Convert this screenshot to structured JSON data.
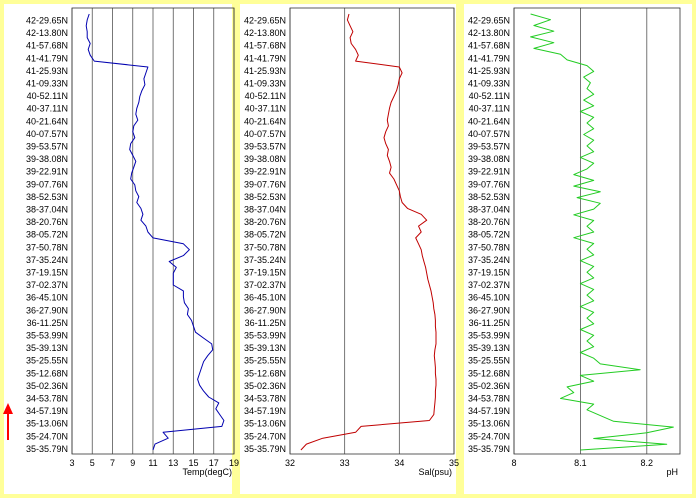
{
  "colors": {
    "panel_border": "#ffff99",
    "background": "#ffffff",
    "grid": "#555555",
    "temp": "#0000b0",
    "sal": "#c00000",
    "ph": "#22cc22",
    "arrow": "#ff0000"
  },
  "latitudes": [
    "42-29.65N",
    "42-13.80N",
    "41-57.68N",
    "41-41.79N",
    "41-25.93N",
    "41-09.33N",
    "40-52.11N",
    "40-37.11N",
    "40-21.64N",
    "40-07.57N",
    "39-53.57N",
    "39-38.08N",
    "39-22.91N",
    "39-07.76N",
    "38-52.53N",
    "38-37.04N",
    "38-20.76N",
    "38-05.72N",
    "37-50.78N",
    "37-35.24N",
    "37-19.15N",
    "37-02.37N",
    "36-45.10N",
    "36-27.90N",
    "36-11.25N",
    "35-53.99N",
    "35-39.13N",
    "35-25.55N",
    "35-12.68N",
    "35-02.36N",
    "34-53.78N",
    "34-57.19N",
    "35-13.06N",
    "35-24.70N",
    "35-35.79N"
  ],
  "chart_data": [
    {
      "type": "line",
      "name": "temperature",
      "xlabel": "Temp(degC)",
      "ylabel": "",
      "xlim": [
        3,
        19
      ],
      "xticks": [
        3,
        5,
        7,
        9,
        11,
        13,
        15,
        17,
        19
      ],
      "y_order": "top_to_bottom",
      "series": [
        {
          "x": [
            4.7,
            4.5,
            4.4,
            4.5,
            4.5,
            4.8,
            4.6,
            4.8,
            5.2,
            10.5,
            10.3,
            10.1,
            10.2,
            9.9,
            9.7,
            9.6,
            9.4,
            9.3,
            9.5,
            9.1,
            9.0,
            9.2,
            8.8,
            8.7,
            9.0,
            9.3,
            9.1,
            8.9,
            8.8,
            9.2,
            9.3,
            9.6,
            9.4,
            9.8,
            10.0,
            9.8,
            10.3,
            10.5,
            11.0,
            14.0,
            14.6,
            14.0,
            12.6,
            13.3,
            13.0,
            13.0,
            13.0,
            14.0,
            14.0,
            14.1,
            14.5,
            14.4,
            14.8,
            15.0,
            15.2,
            16.0,
            16.8,
            16.9,
            16.4,
            16.0,
            15.8,
            15.6,
            15.4,
            15.6,
            16.0,
            16.5,
            17.5,
            17.2,
            17.6,
            18.0,
            17.8,
            12.0,
            12.5,
            11.2,
            11.0
          ]
        }
      ]
    },
    {
      "type": "line",
      "name": "salinity",
      "xlabel": "Sal(psu)",
      "ylabel": "",
      "xlim": [
        32,
        35
      ],
      "xticks": [
        32,
        33,
        34,
        35
      ],
      "y_order": "top_to_bottom",
      "series": [
        {
          "x": [
            33.08,
            33.05,
            33.1,
            33.15,
            33.1,
            33.12,
            33.2,
            33.25,
            33.2,
            34.0,
            34.05,
            34.0,
            33.98,
            33.95,
            33.9,
            33.85,
            33.82,
            33.8,
            33.78,
            33.8,
            33.75,
            33.72,
            33.75,
            33.8,
            33.78,
            33.82,
            33.85,
            33.82,
            33.9,
            33.95,
            34.0,
            34.02,
            34.05,
            34.15,
            34.4,
            34.5,
            34.35,
            34.4,
            34.3,
            34.35,
            34.4,
            34.42,
            34.45,
            34.48,
            34.5,
            34.52,
            34.55,
            34.58,
            34.6,
            34.62,
            34.63,
            34.65,
            34.66,
            34.66,
            34.67,
            34.67,
            34.67,
            34.65,
            34.64,
            34.65,
            34.66,
            34.66,
            34.67,
            34.67,
            34.66,
            34.66,
            34.65,
            34.64,
            34.63,
            34.55,
            33.3,
            33.2,
            32.6,
            32.3,
            32.2
          ]
        }
      ]
    },
    {
      "type": "line",
      "name": "pH",
      "xlabel": "pH",
      "ylabel": "",
      "xlim": [
        8.0,
        8.25
      ],
      "xticks": [
        8,
        8.1,
        8.2
      ],
      "xtick_labels": [
        "8",
        "8.1",
        "8.2"
      ],
      "y_order": "top_to_bottom",
      "series": [
        {
          "x": [
            8.025,
            8.055,
            8.03,
            8.06,
            8.025,
            8.06,
            8.03,
            8.07,
            8.08,
            8.11,
            8.12,
            8.105,
            8.115,
            8.11,
            8.12,
            8.105,
            8.12,
            8.1,
            8.12,
            8.11,
            8.12,
            8.105,
            8.12,
            8.11,
            8.12,
            8.1,
            8.12,
            8.11,
            8.09,
            8.12,
            8.09,
            8.13,
            8.095,
            8.13,
            8.12,
            8.09,
            8.12,
            8.11,
            8.12,
            8.09,
            8.12,
            8.11,
            8.12,
            8.1,
            8.12,
            8.11,
            8.12,
            8.1,
            8.12,
            8.11,
            8.12,
            8.1,
            8.12,
            8.11,
            8.12,
            8.1,
            8.12,
            8.11,
            8.12,
            8.1,
            8.12,
            8.13,
            8.19,
            8.1,
            8.12,
            8.08,
            8.09,
            8.07,
            8.12,
            8.11,
            8.13,
            8.15,
            8.24,
            8.2,
            8.12,
            8.23,
            8.1
          ]
        }
      ]
    }
  ]
}
